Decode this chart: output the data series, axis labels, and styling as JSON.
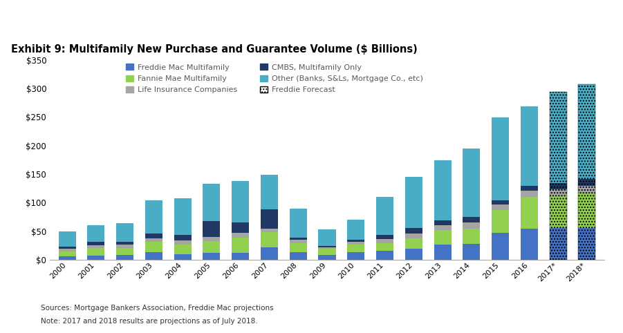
{
  "title": "Exhibit 9: Multifamily New Purchase and Guarantee Volume ($ Billions)",
  "years": [
    "2000",
    "2001",
    "2002",
    "2003",
    "2004",
    "2005",
    "2006",
    "2007",
    "2008",
    "2009",
    "2010",
    "2011",
    "2012",
    "2013",
    "2014",
    "2015",
    "2016",
    "2017*",
    "2018*"
  ],
  "freddie_mac": [
    6,
    7,
    8,
    13,
    10,
    12,
    12,
    22,
    13,
    8,
    13,
    16,
    19,
    26,
    28,
    47,
    55,
    56,
    56
  ],
  "fannie_mae": [
    8,
    13,
    13,
    18,
    17,
    21,
    27,
    26,
    16,
    11,
    13,
    13,
    19,
    26,
    27,
    40,
    55,
    55,
    60
  ],
  "life_ins": [
    5,
    5,
    5,
    6,
    7,
    7,
    8,
    6,
    6,
    3,
    5,
    7,
    8,
    9,
    10,
    10,
    11,
    13,
    14
  ],
  "cmbs": [
    4,
    7,
    6,
    9,
    9,
    28,
    18,
    34,
    4,
    2,
    4,
    7,
    10,
    8,
    10,
    7,
    8,
    10,
    12
  ],
  "other": [
    27,
    28,
    32,
    58,
    65,
    65,
    73,
    61,
    50,
    29,
    35,
    67,
    89,
    105,
    120,
    145,
    140,
    160,
    165
  ],
  "colors": {
    "freddie_mac": "#4472C4",
    "fannie_mae": "#92D050",
    "life_ins": "#A5A5A5",
    "cmbs": "#1F3864",
    "other": "#4BACC6"
  },
  "forecast_years": [
    "2017*",
    "2018*"
  ],
  "ylim": [
    0,
    350
  ],
  "yticks": [
    0,
    50,
    100,
    150,
    200,
    250,
    300,
    350
  ],
  "source_text": "Sources: Mortgage Bankers Association, Freddie Mac projections",
  "note_text": "Note: 2017 and 2018 results are projections as of July 2018.",
  "background_color": "#FFFFFF"
}
